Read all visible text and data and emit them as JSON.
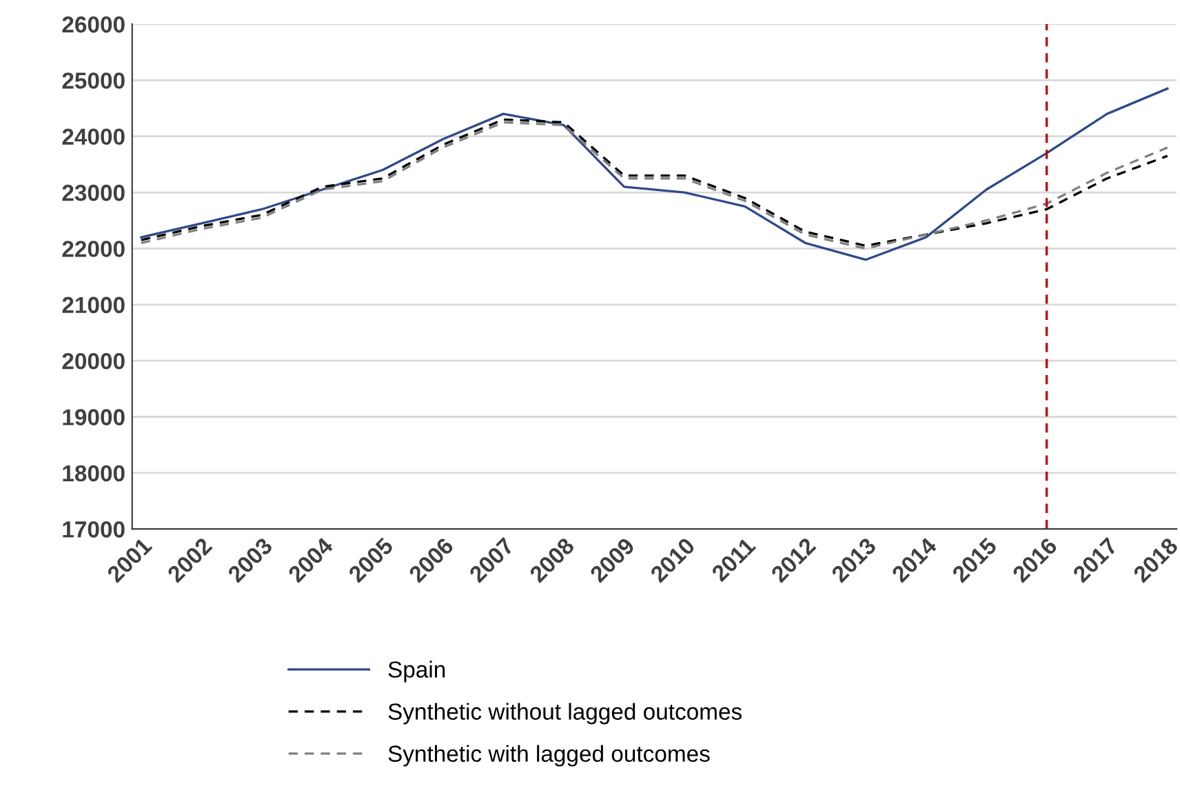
{
  "chart_data": {
    "type": "line",
    "categories": [
      "2001",
      "2002",
      "2003",
      "2004",
      "2005",
      "2006",
      "2007",
      "2008",
      "2009",
      "2010",
      "2011",
      "2012",
      "2013",
      "2014",
      "2015",
      "2016",
      "2017",
      "2018"
    ],
    "series": [
      {
        "name": "Spain",
        "color": "#2f4a8a",
        "line_style": "solid",
        "values": [
          22200,
          22450,
          22700,
          23050,
          23400,
          23950,
          24400,
          24200,
          23100,
          23000,
          22750,
          22100,
          21800,
          22200,
          23050,
          23700,
          24400,
          24850
        ]
      },
      {
        "name": "Synthetic without lagged outcomes",
        "color": "#000000",
        "line_style": "dashed",
        "values": [
          22150,
          22400,
          22600,
          23100,
          23250,
          23850,
          24300,
          24250,
          23300,
          23300,
          22900,
          22300,
          22050,
          22250,
          22450,
          22700,
          23250,
          23650
        ]
      },
      {
        "name": "Synthetic with lagged outcomes",
        "color": "#808080",
        "line_style": "dashed",
        "values": [
          22100,
          22350,
          22550,
          23050,
          23200,
          23800,
          24250,
          24200,
          23250,
          23250,
          22850,
          22250,
          22000,
          22250,
          22500,
          22800,
          23350,
          23800
        ]
      }
    ],
    "ylim": [
      17000,
      26000
    ],
    "yticks": [
      17000,
      18000,
      19000,
      20000,
      21000,
      22000,
      23000,
      24000,
      25000,
      26000
    ],
    "grid": "y",
    "legend": "bottom",
    "marker": "none",
    "ref_lines": [
      {
        "axis": "x",
        "value": "2016",
        "color": "#c00000",
        "line_style": "dashed"
      }
    ]
  }
}
